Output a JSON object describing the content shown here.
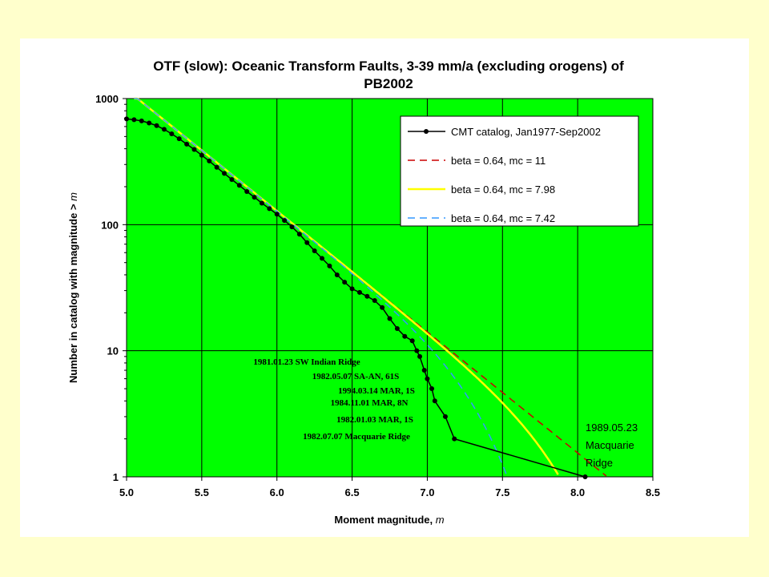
{
  "chart_data": {
    "type": "line",
    "title_line1": "OTF (slow): Oceanic Transform Faults, 3-39 mm/a (excluding orogens) of",
    "title_line2": "PB2002",
    "xlabel_text": "Moment magnitude, ",
    "xlabel_var": "m",
    "ylabel_text": "Number in catalog with magnitude > ",
    "ylabel_var": "m",
    "xlim": [
      5.0,
      8.5
    ],
    "ylim": [
      1,
      1000
    ],
    "yscale": "log",
    "grid": true,
    "legend_position": "top-right",
    "x_ticks": [
      "5.0",
      "5.5",
      "6.0",
      "6.5",
      "7.0",
      "7.5",
      "8.0",
      "8.5"
    ],
    "y_ticks": [
      "1",
      "10",
      "100",
      "1000"
    ],
    "colors": {
      "plot_bg": "#00ff00",
      "catalog": "#000000",
      "red": "#cc0000",
      "yellow": "#ffff00",
      "blue": "#3399ff"
    },
    "series": [
      {
        "name": "CMT catalog, Jan1977-Sep2002",
        "style": "solid-markers",
        "color": "#000000",
        "x": [
          5.0,
          5.05,
          5.1,
          5.15,
          5.2,
          5.25,
          5.3,
          5.35,
          5.4,
          5.45,
          5.5,
          5.55,
          5.6,
          5.65,
          5.7,
          5.75,
          5.8,
          5.85,
          5.9,
          5.95,
          6.0,
          6.05,
          6.1,
          6.15,
          6.2,
          6.25,
          6.3,
          6.35,
          6.4,
          6.45,
          6.5,
          6.55,
          6.6,
          6.65,
          6.7,
          6.75,
          6.8,
          6.85,
          6.9,
          6.93,
          6.95,
          6.98,
          7.0,
          7.03,
          7.05,
          7.12,
          7.18,
          8.05
        ],
        "y": [
          690,
          680,
          665,
          640,
          610,
          570,
          525,
          480,
          435,
          395,
          355,
          320,
          285,
          255,
          228,
          205,
          183,
          165,
          148,
          134,
          121,
          108,
          96,
          84,
          72,
          62,
          54,
          47,
          40,
          35,
          31,
          29,
          27,
          25,
          22,
          18,
          15,
          13,
          12,
          10,
          9,
          7,
          6,
          5,
          4,
          3,
          2,
          1
        ]
      },
      {
        "name": "beta = 0.64, mc = 11",
        "style": "dash",
        "color": "#cc0000",
        "beta": 0.64,
        "mc": 11
      },
      {
        "name": "beta = 0.64, mc = 7.98",
        "style": "solid",
        "color": "#ffff00",
        "beta": 0.64,
        "mc": 7.98
      },
      {
        "name": "beta = 0.64, mc = 7.42",
        "style": "dash",
        "color": "#3399ff",
        "beta": 0.64,
        "mc": 7.42
      }
    ],
    "annotations": [
      {
        "text": "1981.01.23 SW Indian Ridge"
      },
      {
        "text": "1982.05.07 SA-AN, 61S"
      },
      {
        "text": "1994.03.14 MAR, 1S"
      },
      {
        "text": "1984.11.01 MAR, 8N"
      },
      {
        "text": "1982.01.03 MAR, 1S"
      },
      {
        "text": "1982.07.07 Macquarie Ridge"
      }
    ],
    "big_annotation": [
      "1989.05.23",
      "Macquarie",
      "Ridge"
    ]
  }
}
